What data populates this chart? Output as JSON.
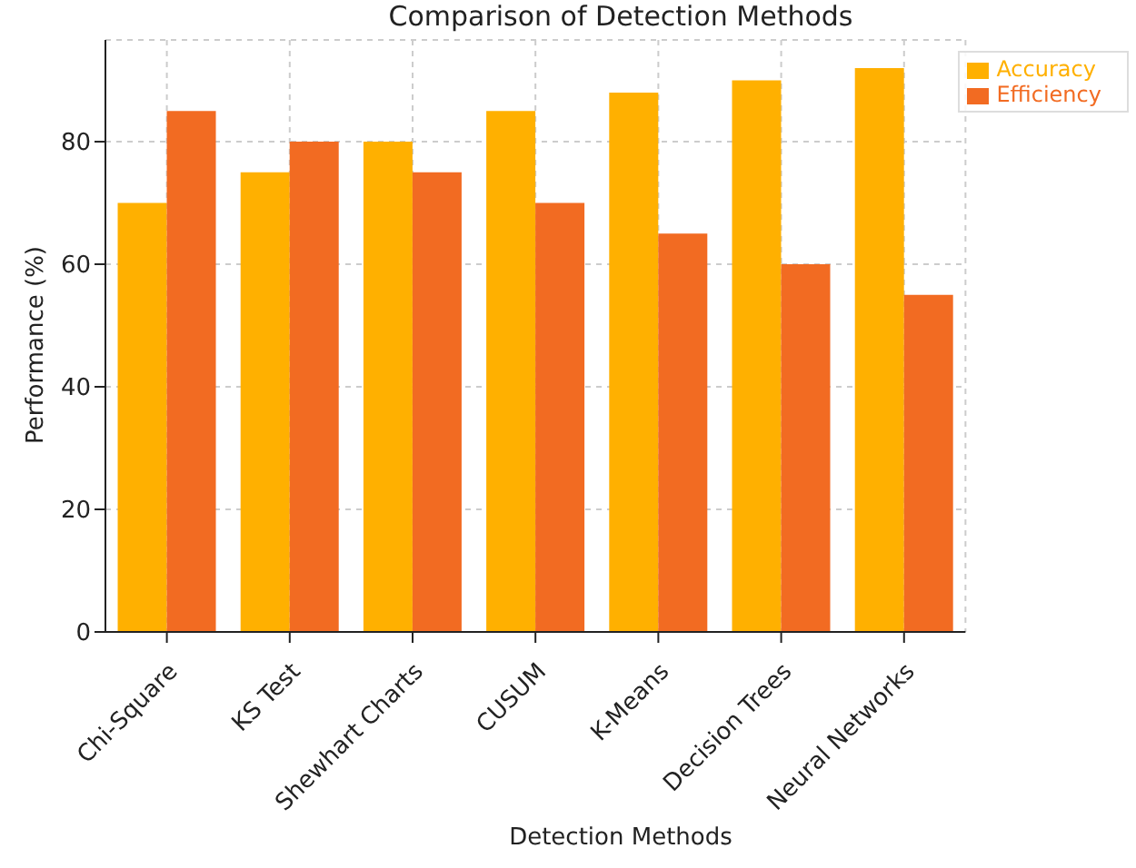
{
  "chart_data": {
    "type": "bar",
    "title": "Comparison of Detection Methods",
    "xlabel": "Detection Methods",
    "ylabel": "Performance (%)",
    "categories": [
      "Chi-Square",
      "KS Test",
      "Shewhart Charts",
      "CUSUM",
      "K-Means",
      "Decision Trees",
      "Neural Networks"
    ],
    "series": [
      {
        "name": "Accuracy",
        "color": "#ffb000",
        "values": [
          70,
          75,
          80,
          85,
          88,
          90,
          92
        ]
      },
      {
        "name": "Efficiency",
        "color": "#f26b22",
        "values": [
          85,
          80,
          75,
          70,
          65,
          60,
          55
        ]
      }
    ],
    "ylim": [
      0,
      96.6
    ],
    "yticks": [
      0,
      20,
      40,
      60,
      80
    ],
    "grid": true,
    "legend": "top right"
  }
}
